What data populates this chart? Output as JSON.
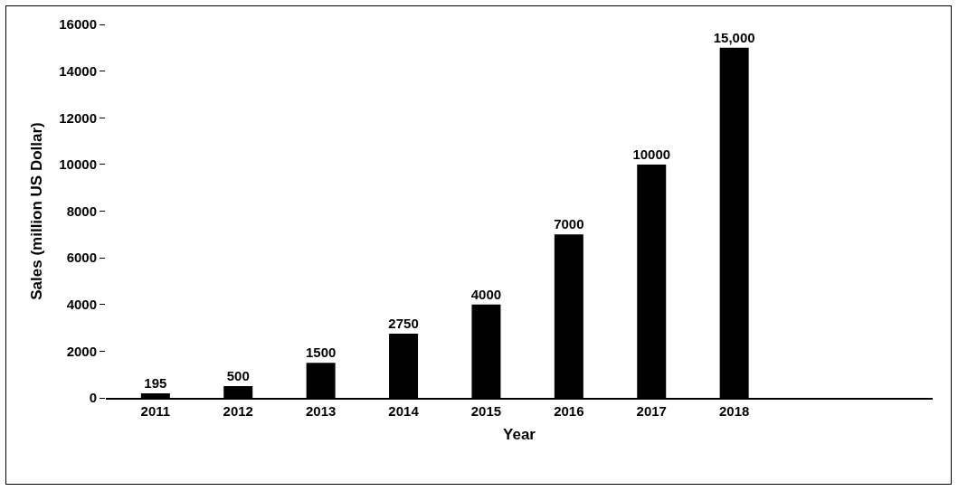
{
  "chart_data": {
    "type": "bar",
    "xlabel": "Year",
    "ylabel": "Sales (million US Dollar)",
    "categories": [
      "2011",
      "2012",
      "2013",
      "2014",
      "2015",
      "2016",
      "2017",
      "2018",
      null,
      null
    ],
    "values": [
      195,
      500,
      1500,
      2750,
      4000,
      7000,
      10000,
      15000,
      null,
      null
    ],
    "value_labels": [
      "195",
      "500",
      "1500",
      "2750",
      "4000",
      "7000",
      "10000",
      "15,000",
      null,
      null
    ],
    "color": "#000000",
    "ylim": [
      0,
      16000
    ],
    "yticks": [
      0,
      2000,
      4000,
      6000,
      8000,
      10000,
      12000,
      14000,
      16000
    ],
    "grid": false
  }
}
